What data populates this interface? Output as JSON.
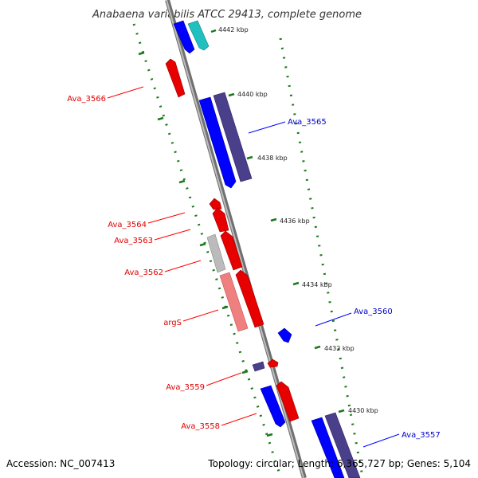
{
  "title": "Anabaena variabilis ATCC 29413, complete genome",
  "footer": {
    "accession": "Accession: NC_007413",
    "summary": "Topology: circular; Length: 6,365,727 bp; Genes: 5,104"
  },
  "colors": {
    "forward_cds": "#ff0000",
    "reverse_cds": "#0000ff",
    "forward_cds_light": "#f08080",
    "reverse_cds_dark": "#4a3f8a",
    "other_gene": "#20c0c0",
    "pseudogene": "#bbbbbb",
    "backbone": "#8a8a8a",
    "tick": "#1a7a1a"
  },
  "ticks": [
    {
      "label": "4442 kbp"
    },
    {
      "label": "4440 kbp"
    },
    {
      "label": "4438 kbp"
    },
    {
      "label": "4436 kbp"
    },
    {
      "label": "4434 kbp"
    },
    {
      "label": "4432 kbp"
    },
    {
      "label": "4430 kbp"
    }
  ],
  "labels": [
    {
      "text": "Ava_3566",
      "strand": "forward"
    },
    {
      "text": "Ava_3565",
      "strand": "reverse"
    },
    {
      "text": "Ava_3564",
      "strand": "forward"
    },
    {
      "text": "Ava_3563",
      "strand": "forward"
    },
    {
      "text": "Ava_3562",
      "strand": "forward"
    },
    {
      "text": "argS",
      "strand": "forward"
    },
    {
      "text": "Ava_3560",
      "strand": "reverse"
    },
    {
      "text": "Ava_3559",
      "strand": "forward"
    },
    {
      "text": "Ava_3558",
      "strand": "forward"
    },
    {
      "text": "Ava_3557",
      "strand": "reverse"
    }
  ]
}
